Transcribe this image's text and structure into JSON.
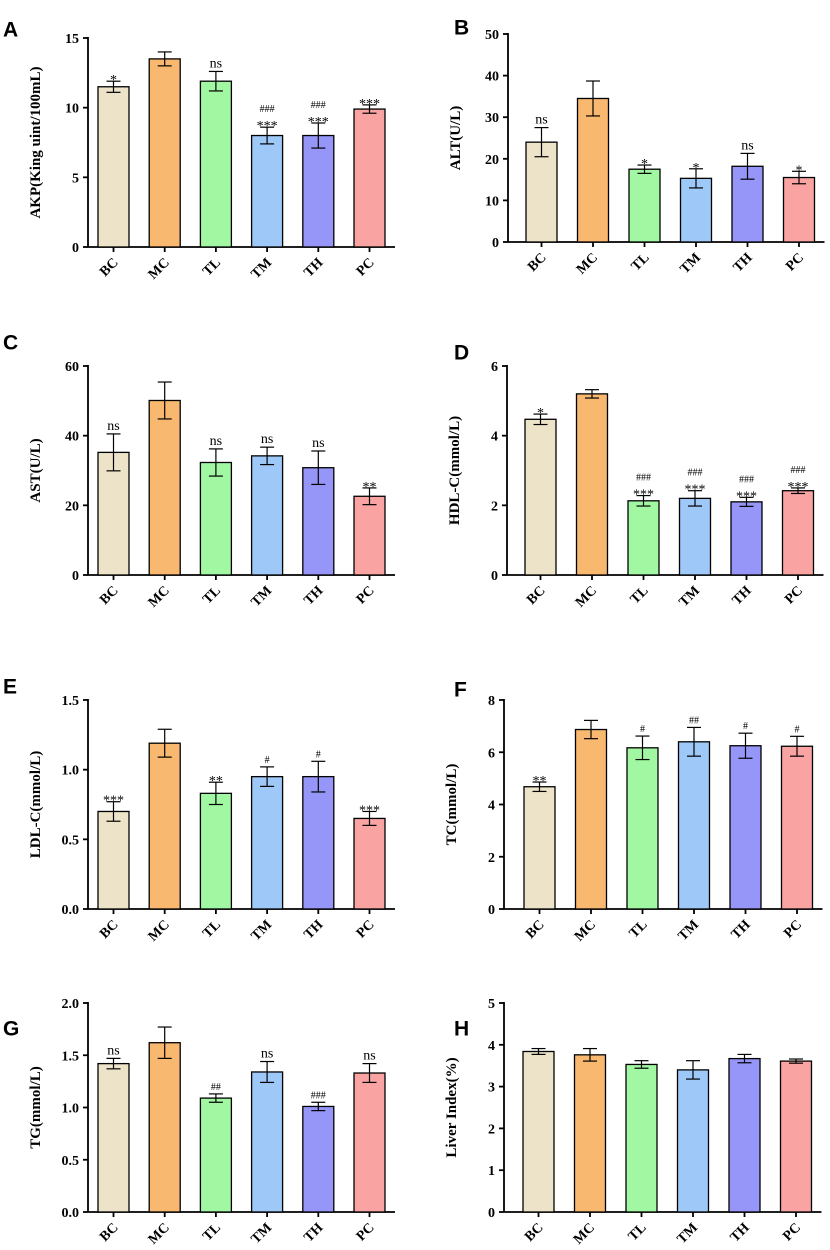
{
  "colors": {
    "BC": "#ede3c8",
    "MC": "#f8b86f",
    "TL": "#a2f7a2",
    "TM": "#9ec8f8",
    "TH": "#9696f8",
    "PC": "#f9a3a3"
  },
  "chart_data": [
    {
      "panel": "A",
      "type": "bar",
      "ylabel": "AKP(King uint/100mL)",
      "xlabel": "",
      "categories": [
        "BC",
        "MC",
        "TL",
        "TM",
        "TH",
        "PC"
      ],
      "values": [
        11.5,
        13.5,
        11.9,
        8.0,
        8.0,
        9.9
      ],
      "errors": [
        0.4,
        0.5,
        0.7,
        0.6,
        0.9,
        0.3
      ],
      "sig": [
        "*",
        "",
        "ns",
        "***",
        "***",
        "***"
      ],
      "hash": [
        "",
        "",
        "",
        "###",
        "###",
        ""
      ],
      "ylim": [
        0,
        15
      ],
      "yticks": [
        0,
        5,
        10,
        15
      ],
      "ytick_labels": [
        "0",
        "5",
        "10",
        "15"
      ]
    },
    {
      "panel": "B",
      "type": "bar",
      "ylabel": "ALT(U/L)",
      "xlabel": "",
      "categories": [
        "BC",
        "MC",
        "TL",
        "TM",
        "TH",
        "PC"
      ],
      "values": [
        24.0,
        34.5,
        17.5,
        15.3,
        18.2,
        15.5
      ],
      "errors": [
        3.5,
        4.2,
        1.0,
        2.3,
        3.1,
        1.5
      ],
      "sig": [
        "ns",
        "",
        "*",
        "*",
        "ns",
        "*"
      ],
      "hash": [
        "",
        "",
        "",
        "",
        "",
        ""
      ],
      "ylim": [
        0,
        50
      ],
      "yticks": [
        0,
        10,
        20,
        30,
        40,
        50
      ],
      "ytick_labels": [
        "0",
        "10",
        "20",
        "30",
        "40",
        "50"
      ]
    },
    {
      "panel": "C",
      "type": "bar",
      "ylabel": "AST(U/L)",
      "xlabel": "",
      "categories": [
        "BC",
        "MC",
        "TL",
        "TM",
        "TH",
        "PC"
      ],
      "values": [
        35.2,
        50.1,
        32.3,
        34.2,
        30.8,
        22.6
      ],
      "errors": [
        5.3,
        5.3,
        3.9,
        2.5,
        4.8,
        2.4
      ],
      "sig": [
        "ns",
        "",
        "ns",
        "ns",
        "ns",
        "**"
      ],
      "hash": [
        "",
        "",
        "",
        "",
        "",
        ""
      ],
      "ylim": [
        0,
        60
      ],
      "yticks": [
        0,
        20,
        40,
        60
      ],
      "ytick_labels": [
        "0",
        "20",
        "40",
        "60"
      ]
    },
    {
      "panel": "D",
      "type": "bar",
      "ylabel": "HDL-C(mmol/L)",
      "xlabel": "",
      "categories": [
        "BC",
        "MC",
        "TL",
        "TM",
        "TH",
        "PC"
      ],
      "values": [
        4.47,
        5.2,
        2.13,
        2.2,
        2.1,
        2.42
      ],
      "errors": [
        0.15,
        0.12,
        0.15,
        0.22,
        0.13,
        0.08
      ],
      "sig": [
        "*",
        "",
        "***",
        "***",
        "***",
        "***"
      ],
      "hash": [
        "",
        "",
        "###",
        "###",
        "###",
        "###"
      ],
      "ylim": [
        0,
        6
      ],
      "yticks": [
        0,
        2,
        4,
        6
      ],
      "ytick_labels": [
        "0",
        "2",
        "4",
        "6"
      ]
    },
    {
      "panel": "E",
      "type": "bar",
      "ylabel": "LDL-C(mmol/L)",
      "xlabel": "",
      "categories": [
        "BC",
        "MC",
        "TL",
        "TM",
        "TH",
        "PC"
      ],
      "values": [
        0.7,
        1.19,
        0.83,
        0.95,
        0.95,
        0.65
      ],
      "errors": [
        0.07,
        0.1,
        0.08,
        0.07,
        0.11,
        0.05
      ],
      "sig": [
        "***",
        "",
        "**",
        "",
        "",
        "***"
      ],
      "hash": [
        "",
        "",
        "",
        "#",
        "#",
        ""
      ],
      "ylim": [
        0,
        1.5
      ],
      "yticks": [
        0,
        0.5,
        1.0,
        1.5
      ],
      "ytick_labels": [
        "0.0",
        "0.5",
        "1.0",
        "1.5"
      ]
    },
    {
      "panel": "F",
      "type": "bar",
      "ylabel": "TC(mmol/L)",
      "xlabel": "",
      "categories": [
        "BC",
        "MC",
        "TL",
        "TM",
        "TH",
        "PC"
      ],
      "values": [
        4.68,
        6.87,
        6.17,
        6.4,
        6.25,
        6.23
      ],
      "errors": [
        0.18,
        0.35,
        0.45,
        0.55,
        0.48,
        0.38
      ],
      "sig": [
        "**",
        "",
        "",
        "",
        "",
        ""
      ],
      "hash": [
        "",
        "",
        "#",
        "##",
        "#",
        "#"
      ],
      "ylim": [
        0,
        8
      ],
      "yticks": [
        0,
        2,
        4,
        6,
        8
      ],
      "ytick_labels": [
        "0",
        "2",
        "4",
        "6",
        "8"
      ]
    },
    {
      "panel": "G",
      "type": "bar",
      "ylabel": "TG(mmol/L)",
      "xlabel": "",
      "categories": [
        "BC",
        "MC",
        "TL",
        "TM",
        "TH",
        "PC"
      ],
      "values": [
        1.42,
        1.62,
        1.09,
        1.34,
        1.01,
        1.33
      ],
      "errors": [
        0.05,
        0.15,
        0.04,
        0.1,
        0.04,
        0.09
      ],
      "sig": [
        "ns",
        "",
        "",
        "ns",
        "",
        "ns"
      ],
      "hash": [
        "",
        "",
        "##",
        "",
        "###",
        ""
      ],
      "ylim": [
        0,
        2.0
      ],
      "yticks": [
        0,
        0.5,
        1.0,
        1.5,
        2.0
      ],
      "ytick_labels": [
        "0.0",
        "0.5",
        "1.0",
        "1.5",
        "2.0"
      ]
    },
    {
      "panel": "H",
      "type": "bar",
      "ylabel": "Liver Index(%)",
      "xlabel": "",
      "categories": [
        "BC",
        "MC",
        "TL",
        "TM",
        "TH",
        "PC"
      ],
      "values": [
        3.84,
        3.76,
        3.53,
        3.4,
        3.67,
        3.61
      ],
      "errors": [
        0.07,
        0.15,
        0.09,
        0.22,
        0.1,
        0.05
      ],
      "sig": [
        "",
        "",
        "",
        "",
        "",
        ""
      ],
      "hash": [
        "",
        "",
        "",
        "",
        "",
        ""
      ],
      "ylim": [
        0,
        5
      ],
      "yticks": [
        0,
        1,
        2,
        3,
        4,
        5
      ],
      "ytick_labels": [
        "0",
        "1",
        "2",
        "3",
        "4",
        "5"
      ]
    }
  ]
}
